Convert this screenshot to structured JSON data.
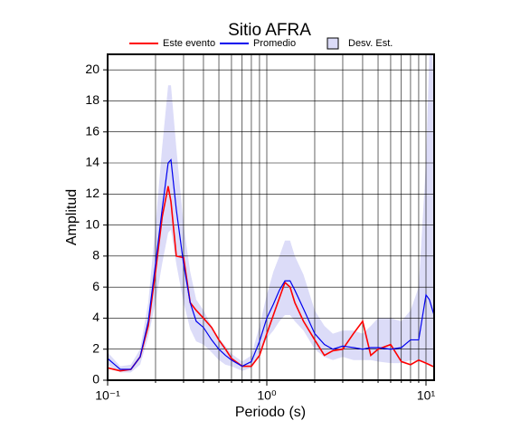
{
  "chart_data": {
    "type": "line",
    "title": "Sitio AFRA",
    "xlabel": "Periodo (s)",
    "ylabel": "Amplitud",
    "xscale": "log",
    "grid": true,
    "xlim": [
      0.1,
      11.25
    ],
    "ylim": [
      0,
      21
    ],
    "xticks": [
      {
        "value": 0.1,
        "label": "10⁻¹"
      },
      {
        "value": 1,
        "label": "10⁰"
      },
      {
        "value": 10,
        "label": "10¹"
      }
    ],
    "xminorticks": [
      0.2,
      0.3,
      0.4,
      0.5,
      0.6,
      0.7,
      0.8,
      0.9,
      2,
      3,
      4,
      5,
      6,
      7,
      8,
      9
    ],
    "yticks": [
      0,
      2,
      4,
      6,
      8,
      10,
      12,
      14,
      16,
      18,
      20
    ],
    "x": [
      0.1,
      0.12,
      0.14,
      0.16,
      0.18,
      0.2,
      0.22,
      0.24,
      0.25,
      0.27,
      0.3,
      0.33,
      0.36,
      0.4,
      0.45,
      0.5,
      0.55,
      0.6,
      0.7,
      0.8,
      0.9,
      1.0,
      1.1,
      1.2,
      1.3,
      1.4,
      1.5,
      1.7,
      2.0,
      2.3,
      2.6,
      3.0,
      3.5,
      4.0,
      4.5,
      5,
      6,
      7,
      8,
      9,
      10,
      10.5,
      11,
      11.25
    ],
    "series": [
      {
        "name": "Este evento",
        "color": "#ff0000",
        "values": [
          0.8,
          0.6,
          0.7,
          1.5,
          3.5,
          7,
          10.5,
          12.5,
          11.5,
          8,
          7.9,
          5,
          4.5,
          4,
          3.4,
          2.6,
          2.0,
          1.4,
          0.9,
          0.9,
          1.6,
          3,
          4.2,
          5.3,
          6.3,
          6,
          5,
          3.8,
          2.6,
          1.6,
          1.9,
          2,
          3,
          3.8,
          1.6,
          2,
          2.3,
          1.2,
          1.0,
          1.3,
          1.1,
          1.0,
          0.9,
          0.9
        ]
      },
      {
        "name": "Promedio",
        "color": "#0000ee",
        "values": [
          1.4,
          0.7,
          0.7,
          1.5,
          3.8,
          7.5,
          11,
          14,
          14.2,
          11,
          7.5,
          5,
          3.8,
          3.4,
          2.6,
          2,
          1.6,
          1.3,
          0.9,
          1.2,
          2.5,
          4,
          4.9,
          5.8,
          6.4,
          6.4,
          5.8,
          4.6,
          3,
          2.3,
          2.0,
          2.2,
          2.1,
          2.0,
          2.1,
          2.1,
          2.0,
          2.1,
          2.6,
          2.6,
          5.5,
          5.2,
          4.5,
          4.2
        ]
      },
      {
        "name": "Desv. Est.",
        "color": "#dcdcf8",
        "type": "band",
        "upper": [
          1.8,
          0.9,
          1.0,
          2.0,
          5,
          10,
          15,
          19,
          19,
          15,
          10,
          7,
          5.2,
          4.5,
          3.5,
          2.7,
          2.2,
          1.7,
          1.2,
          1.6,
          3.5,
          5.5,
          7,
          8,
          9,
          9,
          8,
          6.8,
          4.5,
          3.5,
          3.0,
          3.2,
          3.2,
          3.0,
          3.5,
          4,
          4,
          3.8,
          4.5,
          6,
          14,
          21,
          21,
          18
        ],
        "lower": [
          1.0,
          0.5,
          0.5,
          1.0,
          2.8,
          5,
          7.5,
          9.5,
          9.7,
          7.5,
          5,
          3.3,
          2.5,
          2.3,
          1.8,
          1.3,
          1.0,
          0.9,
          0.6,
          0.8,
          1.7,
          2.7,
          3.2,
          3.8,
          4.2,
          4.2,
          3.8,
          3.2,
          2.0,
          1.5,
          1.3,
          1.5,
          1.3,
          1.3,
          1.3,
          1.2,
          1.1,
          1.1,
          1.3,
          1.2,
          1.2,
          1.0,
          1.0,
          1.0
        ]
      }
    ]
  }
}
